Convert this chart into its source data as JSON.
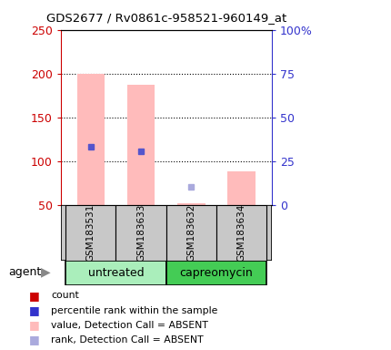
{
  "title": "GDS2677 / Rv0861c-958521-960149_at",
  "samples": [
    "GSM183531",
    "GSM183633",
    "GSM183632",
    "GSM183634"
  ],
  "groups": [
    "untreated",
    "untreated",
    "capreomycin",
    "capreomycin"
  ],
  "group_labels": [
    "untreated",
    "capreomycin"
  ],
  "untreated_color": "#AAEEBB",
  "capreomycin_color": "#44CC55",
  "bar_base": 50,
  "pink_bar_tops": [
    200,
    187,
    52,
    88
  ],
  "blue_squares_present": [
    true,
    true,
    false,
    false
  ],
  "blue_sq_yvals": [
    116,
    111,
    null,
    null
  ],
  "light_blue_squares": [
    false,
    false,
    true,
    false
  ],
  "light_blue_yvals": [
    null,
    null,
    70,
    null
  ],
  "left_axis_color": "#CC0000",
  "right_axis_color": "#3333CC",
  "left_ylim": [
    50,
    250
  ],
  "left_yticks": [
    50,
    100,
    150,
    200,
    250
  ],
  "right_ylim": [
    0,
    100
  ],
  "right_yticks": [
    0,
    25,
    50,
    75,
    100
  ],
  "right_yticklabels": [
    "0",
    "25",
    "50",
    "75",
    "100%"
  ],
  "pink_color": "#FFBBBB",
  "blue_sq_color": "#5555CC",
  "light_blue_sq_color": "#AAAADD",
  "bar_width": 0.55,
  "legend_colors": [
    "#CC0000",
    "#3333CC",
    "#FFBBBB",
    "#AAAADD"
  ],
  "legend_labels": [
    "count",
    "percentile rank within the sample",
    "value, Detection Call = ABSENT",
    "rank, Detection Call = ABSENT"
  ],
  "figsize": [
    4.3,
    3.84
  ],
  "dpi": 100
}
